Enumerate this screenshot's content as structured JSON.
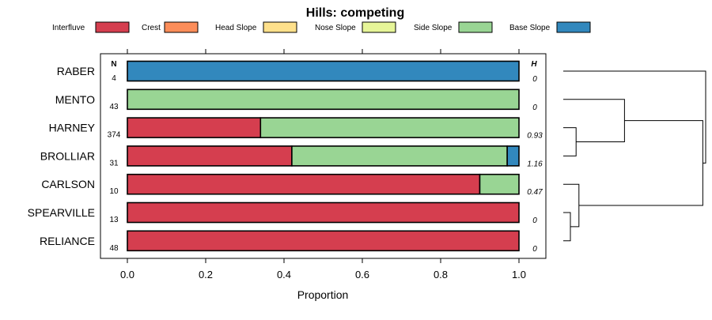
{
  "chart_data": {
    "type": "bar",
    "orientation": "horizontal",
    "stacked": true,
    "title": "Hills: competing",
    "xlabel": "Proportion",
    "ylabel": "",
    "xlim": [
      0,
      1
    ],
    "xticks": [
      "0.0",
      "0.2",
      "0.4",
      "0.6",
      "0.8",
      "1.0"
    ],
    "xtick_values": [
      0,
      0.2,
      0.4,
      0.6,
      0.8,
      1.0
    ],
    "legend_position": "top",
    "n_header": "N",
    "h_header": "H",
    "legend": [
      {
        "name": "Interfluve",
        "color": "#D53E4F"
      },
      {
        "name": "Crest",
        "color": "#FC8D59"
      },
      {
        "name": "Head Slope",
        "color": "#FEE08B"
      },
      {
        "name": "Nose Slope",
        "color": "#E6F598"
      },
      {
        "name": "Side Slope",
        "color": "#99D594"
      },
      {
        "name": "Base Slope",
        "color": "#3288BD"
      }
    ],
    "categories": [
      "RABER",
      "MENTO",
      "HARNEY",
      "BROLLIAR",
      "CARLSON",
      "SPEARVILLE",
      "RELIANCE"
    ],
    "n": [
      "4",
      "43",
      "374",
      "31",
      "10",
      "13",
      "48"
    ],
    "h": [
      "0",
      "0",
      "0.93",
      "1.16",
      "0.47",
      "0",
      "0"
    ],
    "series": [
      {
        "name": "Interfluve",
        "values": [
          0,
          0,
          0.34,
          0.42,
          0.9,
          1.0,
          1.0
        ]
      },
      {
        "name": "Crest",
        "values": [
          0,
          0,
          0,
          0,
          0,
          0,
          0
        ]
      },
      {
        "name": "Head Slope",
        "values": [
          0,
          0,
          0,
          0,
          0,
          0,
          0
        ]
      },
      {
        "name": "Nose Slope",
        "values": [
          0,
          0,
          0,
          0,
          0,
          0,
          0
        ]
      },
      {
        "name": "Side Slope",
        "values": [
          0,
          1.0,
          0.66,
          0.55,
          0.1,
          0,
          0
        ]
      },
      {
        "name": "Base Slope",
        "values": [
          1.0,
          0,
          0,
          0.03,
          0,
          0,
          0
        ]
      }
    ],
    "dendrogram": {
      "merges": [
        {
          "a": "HARNEY",
          "b": "BROLLIAR",
          "height": 0.09
        },
        {
          "a": "SPEARVILLE",
          "b": "RELIANCE",
          "height": 0.05
        },
        {
          "a": "CARLSON",
          "b": "m2",
          "height": 0.11
        },
        {
          "a": "MENTO",
          "b": "m1",
          "height": 0.43
        },
        {
          "a": "m4",
          "b": "m3",
          "height": 0.98
        },
        {
          "a": "RABER",
          "b": "m5",
          "height": 1.0
        }
      ]
    }
  }
}
